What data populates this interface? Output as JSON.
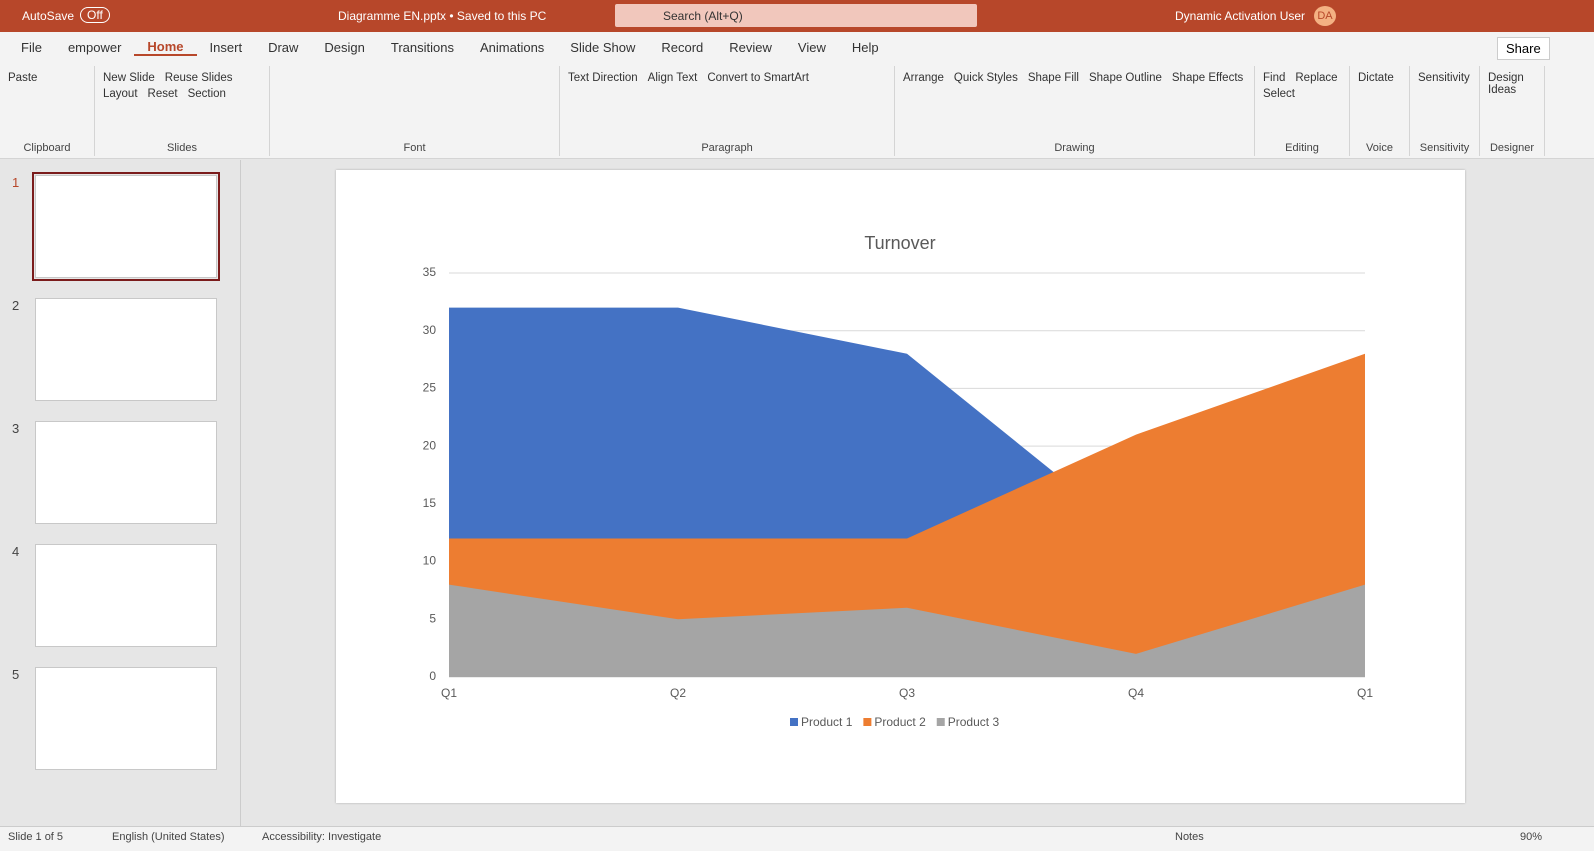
{
  "window": {
    "autosave": "AutoSave",
    "autosave_state": "Off",
    "filename": "Diagramme EN.pptx • Saved to this PC",
    "search": "Search (Alt+Q)",
    "user": "Dynamic Activation User",
    "initials": "DA"
  },
  "tabs": [
    "File",
    "empower",
    "Home",
    "Insert",
    "Draw",
    "Design",
    "Transitions",
    "Animations",
    "Slide Show",
    "Record",
    "Review",
    "View",
    "Help"
  ],
  "share": "Share",
  "ribbon_groups": [
    {
      "label": "Clipboard",
      "buttons": [
        "Paste"
      ]
    },
    {
      "label": "Slides",
      "buttons": [
        "New Slide",
        "Reuse Slides",
        "Layout",
        "Reset",
        "Section"
      ]
    },
    {
      "label": "Font",
      "buttons": []
    },
    {
      "label": "Paragraph",
      "buttons": [
        "Text Direction",
        "Align Text",
        "Convert to SmartArt"
      ]
    },
    {
      "label": "Drawing",
      "buttons": [
        "Arrange",
        "Quick Styles",
        "Shape Fill",
        "Shape Outline",
        "Shape Effects"
      ]
    },
    {
      "label": "Editing",
      "buttons": [
        "Find",
        "Replace",
        "Select"
      ]
    },
    {
      "label": "Voice",
      "buttons": [
        "Dictate"
      ]
    },
    {
      "label": "Sensitivity",
      "buttons": [
        "Sensitivity"
      ]
    },
    {
      "label": "Designer",
      "buttons": [
        "Design Ideas"
      ]
    }
  ],
  "slides": [
    "1",
    "2",
    "3",
    "4",
    "5"
  ],
  "status": [
    "Slide 1 of 5",
    "English (United States)",
    "Accessibility: Investigate",
    "Notes",
    "90%"
  ],
  "chart_data": {
    "type": "area",
    "title": "Turnover",
    "categories": [
      "Q1",
      "Q2",
      "Q3",
      "Q4",
      "Q1"
    ],
    "series": [
      {
        "name": "Product 1",
        "color": "#4472c4",
        "values": [
          32,
          32,
          28,
          12,
          18
        ]
      },
      {
        "name": "Product 2",
        "color": "#ed7d31",
        "values": [
          12,
          12,
          12,
          21,
          28
        ]
      },
      {
        "name": "Product 3",
        "color": "#a5a5a5",
        "values": [
          8,
          5,
          6,
          2,
          8
        ]
      }
    ],
    "ylim": [
      0,
      35
    ],
    "yticks": [
      0,
      5,
      10,
      15,
      20,
      25,
      30,
      35
    ],
    "grid": true,
    "legend": "bottom"
  }
}
